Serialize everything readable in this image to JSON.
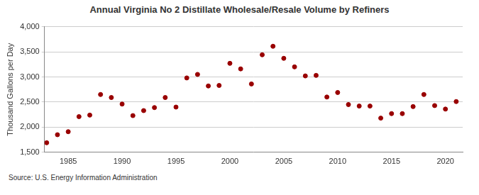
{
  "chart_data": {
    "type": "scatter",
    "title": "Annual Virginia No 2 Distillate Wholesale/Resale Volume by Refiners",
    "y_label": "Thousand Gallons per Day",
    "annotations": [
      "Source: U.S. Energy Information Administration"
    ],
    "x": [
      1983,
      1984,
      1985,
      1986,
      1987,
      1988,
      1989,
      1990,
      1991,
      1992,
      1993,
      1994,
      1995,
      1996,
      1997,
      1998,
      1999,
      2000,
      2001,
      2002,
      2003,
      2004,
      2005,
      2006,
      2007,
      2008,
      2009,
      2010,
      2011,
      2012,
      2013,
      2014,
      2015,
      2016,
      2017,
      2018,
      2019,
      2020,
      2021
    ],
    "values": [
      1690,
      1850,
      1910,
      2210,
      2240,
      2650,
      2590,
      2460,
      2230,
      2330,
      2390,
      2590,
      2400,
      2980,
      3050,
      2820,
      2830,
      3270,
      3160,
      2860,
      3440,
      3610,
      3370,
      3200,
      3020,
      3030,
      2600,
      2690,
      2450,
      2420,
      2420,
      2180,
      2270,
      2270,
      2410,
      2650,
      2430,
      2360,
      2510
    ],
    "color": "#990000",
    "marker": "circle",
    "xlim": [
      1982.8,
      2021.6
    ],
    "xticks": [
      1985,
      1990,
      1995,
      2000,
      2005,
      2010,
      2015,
      2020
    ],
    "ylim": [
      1500,
      4000
    ],
    "yticks": [
      {
        "value": 1500,
        "label": "1,500"
      },
      {
        "value": 2000,
        "label": "2,000"
      },
      {
        "value": 2500,
        "label": "2,500"
      },
      {
        "value": 3000,
        "label": "3,000"
      },
      {
        "value": 3500,
        "label": "3,500"
      },
      {
        "value": 4000,
        "label": "4,000"
      }
    ],
    "grid": "y"
  }
}
